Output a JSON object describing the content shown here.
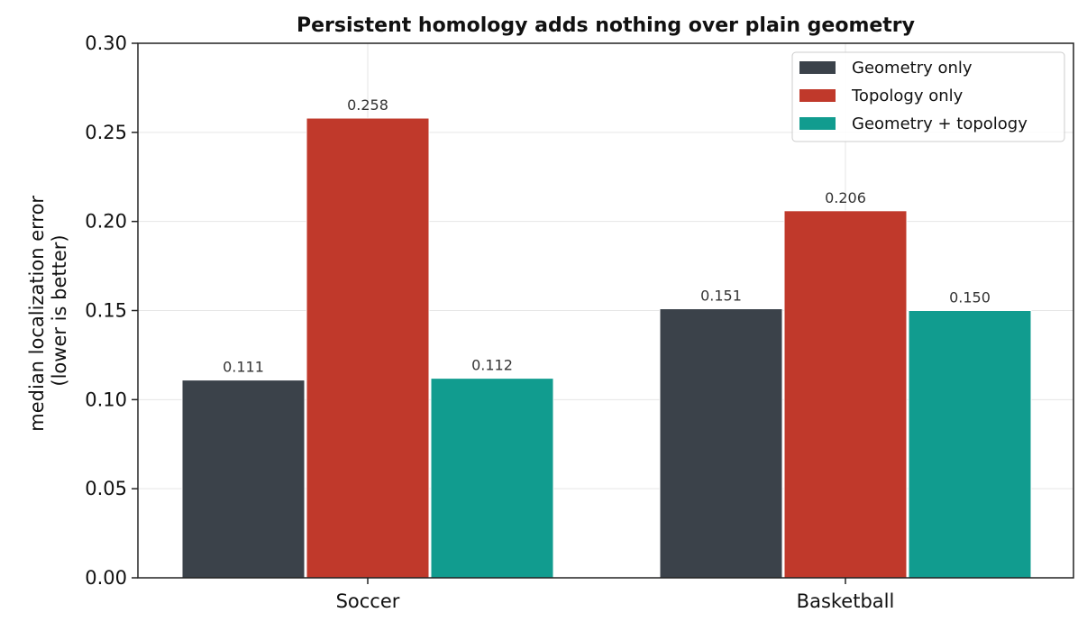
{
  "chart_data": {
    "type": "bar",
    "title": "Persistent homology adds nothing over plain geometry",
    "xlabel": "",
    "ylabel_lines": [
      "median localization error",
      "(lower is better)"
    ],
    "categories": [
      "Soccer",
      "Basketball"
    ],
    "series": [
      {
        "name": "Geometry only",
        "values": [
          0.111,
          0.151
        ],
        "labels": [
          "0.111",
          "0.151"
        ],
        "color": "#3b424a"
      },
      {
        "name": "Topology only",
        "values": [
          0.258,
          0.206
        ],
        "labels": [
          "0.258",
          "0.206"
        ],
        "color": "#c0392b"
      },
      {
        "name": "Geometry + topology",
        "values": [
          0.112,
          0.15
        ],
        "labels": [
          "0.112",
          "0.150"
        ],
        "color": "#119c8f"
      }
    ],
    "ylim": [
      0,
      0.3
    ],
    "yticks": [
      0.0,
      0.05,
      0.1,
      0.15,
      0.2,
      0.25,
      0.3
    ],
    "ytick_labels": [
      "0.00",
      "0.05",
      "0.10",
      "0.15",
      "0.20",
      "0.25",
      "0.30"
    ],
    "grid": true,
    "legend_position": "top-right"
  }
}
